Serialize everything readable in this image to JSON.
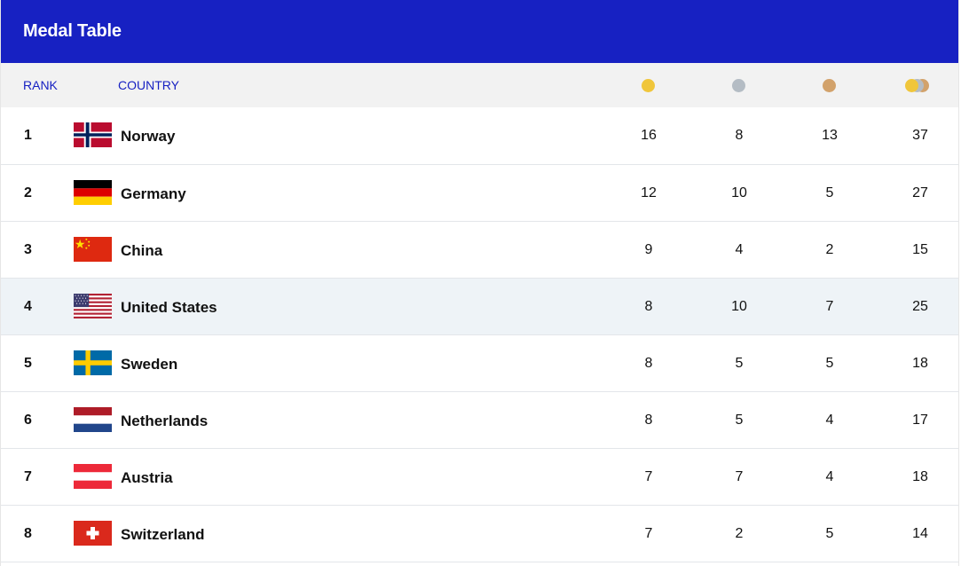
{
  "title": "Medal Table",
  "headers": {
    "rank": "RANK",
    "country": "COUNTRY",
    "gold_icon": "gold-medal-icon",
    "silver_icon": "silver-medal-icon",
    "bronze_icon": "bronze-medal-icon",
    "total_icon": "total-medals-icon"
  },
  "colors": {
    "brand": "#1721c2",
    "gold": "#f0c63b",
    "silver": "#b4bcc4",
    "bronze": "#d2a26b",
    "highlight_row": "#eef3f7"
  },
  "rows": [
    {
      "rank": "1",
      "country": "Norway",
      "flag": "norway-flag-icon",
      "gold": "16",
      "silver": "8",
      "bronze": "13",
      "total": "37"
    },
    {
      "rank": "2",
      "country": "Germany",
      "flag": "germany-flag-icon",
      "gold": "12",
      "silver": "10",
      "bronze": "5",
      "total": "27"
    },
    {
      "rank": "3",
      "country": "China",
      "flag": "china-flag-icon",
      "gold": "9",
      "silver": "4",
      "bronze": "2",
      "total": "15"
    },
    {
      "rank": "4",
      "country": "United States",
      "flag": "usa-flag-icon",
      "gold": "8",
      "silver": "10",
      "bronze": "7",
      "total": "25"
    },
    {
      "rank": "5",
      "country": "Sweden",
      "flag": "sweden-flag-icon",
      "gold": "8",
      "silver": "5",
      "bronze": "5",
      "total": "18"
    },
    {
      "rank": "6",
      "country": "Netherlands",
      "flag": "netherlands-flag-icon",
      "gold": "8",
      "silver": "5",
      "bronze": "4",
      "total": "17"
    },
    {
      "rank": "7",
      "country": "Austria",
      "flag": "austria-flag-icon",
      "gold": "7",
      "silver": "7",
      "bronze": "4",
      "total": "18"
    },
    {
      "rank": "8",
      "country": "Switzerland",
      "flag": "switzerland-flag-icon",
      "gold": "7",
      "silver": "2",
      "bronze": "5",
      "total": "14"
    }
  ]
}
